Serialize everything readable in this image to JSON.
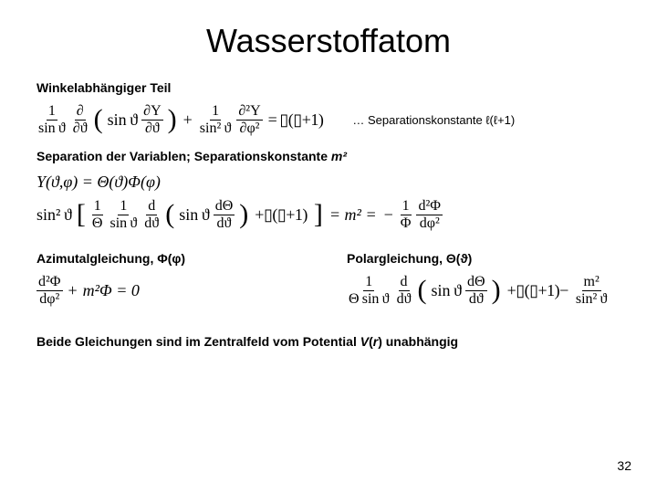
{
  "title": "Wasserstoffatom",
  "section1": {
    "heading": "Winkelabhängiger Teil"
  },
  "eq1": {
    "f1_num": "1",
    "f1_den": "sin ϑ",
    "f2_num": "∂",
    "f2_den": "∂ϑ",
    "f3_num": "∂Y",
    "f3_den": "∂ϑ",
    "sin": "sin ϑ",
    "plus": "+",
    "f4_num": "1",
    "f4_den": "sin² ϑ",
    "f5_num": "∂²Y",
    "f5_den": "∂φ²",
    "eq_box": "= ▯(▯+1)",
    "sep_note": "… Separationskonstante ℓ(ℓ+1)"
  },
  "section2": {
    "heading_a": "Separation der Variablen; Separationskonstante ",
    "heading_b": "m²"
  },
  "eq2a": {
    "lhs": "Y(ϑ,φ) = Θ(ϑ)Φ(φ)"
  },
  "eq2b": {
    "sin2": "sin² ϑ",
    "f1_num": "1",
    "f1_den": "Θ",
    "f2_num": "1",
    "f2_den": "sin ϑ",
    "f3_num": "d",
    "f3_den": "dϑ",
    "sin": "sin ϑ",
    "f4_num": "dΘ",
    "f4_den": "dϑ",
    "plus_ll": "+▯(▯+1)",
    "eq_m2": "= m² =",
    "minus": "−",
    "rf1_num": "1",
    "rf1_den": "Φ",
    "rf2_num": "d²Φ",
    "rf2_den": "dφ²"
  },
  "cols": {
    "azi": {
      "heading": "Azimutalgleichung, Φ(φ)"
    },
    "pol": {
      "heading": "Polargleichung, Θ(ϑ)"
    }
  },
  "eq_azi": {
    "f1_num": "d²Φ",
    "f1_den": "dφ²",
    "plus": "+",
    "m2phi": "m²Φ = 0"
  },
  "eq_pol": {
    "f1_num": "1",
    "f1_den": "Θ sin ϑ",
    "f2_num": "d",
    "f2_den": "dϑ",
    "sin": "sin ϑ",
    "f3_num": "dΘ",
    "f3_den": "dϑ",
    "plus_ll": "+▯(▯+1)−",
    "f4_num": "m²",
    "f4_den": "sin² ϑ"
  },
  "footer_a": "Beide Gleichungen sind im Zentralfeld vom Potential ",
  "footer_b": "V",
  "footer_c": "(",
  "footer_d": "r",
  "footer_e": ") unabhängig",
  "page": "32"
}
